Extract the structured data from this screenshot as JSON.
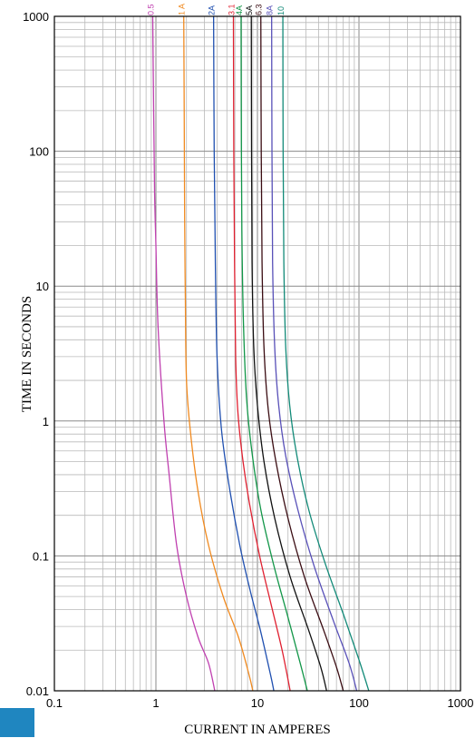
{
  "chart_data": {
    "type": "line",
    "xscale": "log",
    "yscale": "log",
    "xlim": [
      0.1,
      1000
    ],
    "ylim": [
      0.01,
      1000
    ],
    "xlabel": "CURRENT IN AMPERES",
    "ylabel": "TIME IN SECONDS",
    "xticks": [
      0.1,
      1,
      10,
      100,
      1000
    ],
    "xtick_labels": [
      "0.1",
      "1",
      "10",
      "100",
      "1000"
    ],
    "yticks": [
      0.01,
      0.1,
      1,
      10,
      100,
      1000
    ],
    "ytick_labels": [
      "0.01",
      "0.1",
      "1",
      "10",
      "100",
      "1000"
    ],
    "grid": true,
    "series": [
      {
        "name": "0.5",
        "color": "#c040b0",
        "points": [
          [
            0.93,
            1000
          ],
          [
            0.95,
            200
          ],
          [
            0.97,
            50
          ],
          [
            1.0,
            20
          ],
          [
            1.05,
            5
          ],
          [
            1.2,
            1
          ],
          [
            1.35,
            0.4
          ],
          [
            1.6,
            0.12
          ],
          [
            2.0,
            0.05
          ],
          [
            2.6,
            0.025
          ],
          [
            3.3,
            0.016
          ],
          [
            3.8,
            0.01
          ]
        ]
      },
      {
        "name": "1 A",
        "color": "#f08a20",
        "points": [
          [
            1.88,
            1000
          ],
          [
            1.9,
            200
          ],
          [
            1.92,
            30
          ],
          [
            1.95,
            8
          ],
          [
            2.0,
            2
          ],
          [
            2.2,
            0.8
          ],
          [
            2.6,
            0.3
          ],
          [
            3.3,
            0.12
          ],
          [
            4.6,
            0.05
          ],
          [
            6.5,
            0.025
          ],
          [
            8.3,
            0.013
          ],
          [
            9.0,
            0.01
          ]
        ]
      },
      {
        "name": "2A",
        "color": "#2050b0",
        "points": [
          [
            3.7,
            1000
          ],
          [
            3.75,
            100
          ],
          [
            3.85,
            15
          ],
          [
            4.0,
            3
          ],
          [
            4.4,
            0.9
          ],
          [
            5.2,
            0.35
          ],
          [
            6.7,
            0.12
          ],
          [
            8.5,
            0.055
          ],
          [
            10.7,
            0.028
          ],
          [
            13.5,
            0.013
          ],
          [
            14.5,
            0.01
          ]
        ]
      },
      {
        "name": "3.1",
        "color": "#e02030",
        "points": [
          [
            5.8,
            1000
          ],
          [
            5.85,
            100
          ],
          [
            5.95,
            15
          ],
          [
            6.1,
            3
          ],
          [
            6.4,
            1.2
          ],
          [
            7.1,
            0.55
          ],
          [
            8.3,
            0.25
          ],
          [
            10.5,
            0.1
          ],
          [
            13.5,
            0.045
          ],
          [
            17.5,
            0.02
          ],
          [
            21,
            0.01
          ]
        ]
      },
      {
        "name": "4A",
        "color": "#129648",
        "points": [
          [
            6.9,
            1000
          ],
          [
            6.95,
            100
          ],
          [
            7.05,
            20
          ],
          [
            7.3,
            5
          ],
          [
            7.8,
            1.5
          ],
          [
            8.8,
            0.6
          ],
          [
            10.8,
            0.22
          ],
          [
            14.5,
            0.085
          ],
          [
            20,
            0.035
          ],
          [
            27,
            0.015
          ],
          [
            31,
            0.01
          ]
        ]
      },
      {
        "name": "5A",
        "color": "#101010",
        "points": [
          [
            8.7,
            1000
          ],
          [
            8.75,
            100
          ],
          [
            8.85,
            15
          ],
          [
            9.2,
            3.5
          ],
          [
            10.0,
            1.3
          ],
          [
            11.6,
            0.5
          ],
          [
            14.8,
            0.19
          ],
          [
            21,
            0.07
          ],
          [
            32,
            0.028
          ],
          [
            42,
            0.015
          ],
          [
            48,
            0.01
          ]
        ]
      },
      {
        "name": "6.3",
        "color": "#3a0c12",
        "points": [
          [
            10.8,
            1000
          ],
          [
            10.9,
            100
          ],
          [
            11.1,
            15
          ],
          [
            11.6,
            3.5
          ],
          [
            12.8,
            1.2
          ],
          [
            15.2,
            0.5
          ],
          [
            20,
            0.19
          ],
          [
            29,
            0.07
          ],
          [
            45,
            0.028
          ],
          [
            60,
            0.015
          ],
          [
            70,
            0.01
          ]
        ]
      },
      {
        "name": "8A",
        "color": "#5850b8",
        "points": [
          [
            13.8,
            1000
          ],
          [
            13.9,
            100
          ],
          [
            14.1,
            15
          ],
          [
            14.8,
            3.5
          ],
          [
            16.2,
            1.3
          ],
          [
            19,
            0.55
          ],
          [
            25,
            0.22
          ],
          [
            36,
            0.085
          ],
          [
            56,
            0.033
          ],
          [
            80,
            0.016
          ],
          [
            95,
            0.01
          ]
        ]
      },
      {
        "name": "10",
        "color": "#128a78",
        "points": [
          [
            17.8,
            1000
          ],
          [
            17.9,
            100
          ],
          [
            18.2,
            15
          ],
          [
            19,
            3.5
          ],
          [
            20.8,
            1.3
          ],
          [
            24.5,
            0.55
          ],
          [
            32,
            0.22
          ],
          [
            46,
            0.09
          ],
          [
            72,
            0.035
          ],
          [
            100,
            0.017
          ],
          [
            125,
            0.01
          ]
        ]
      }
    ]
  }
}
